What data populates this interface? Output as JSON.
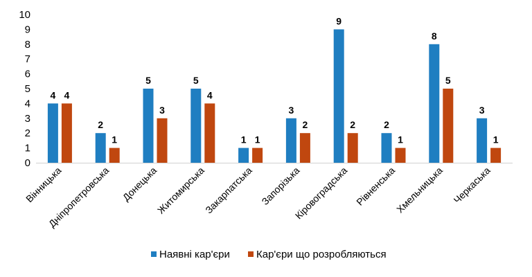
{
  "chart_data": {
    "type": "bar",
    "categories": [
      "Вінницька",
      "Дніпропетровська",
      "Донецька",
      "Житомирська",
      "Закарпатська",
      "Запорізька",
      "Кіровоградська",
      "Рівненська",
      "Хмельницька",
      "Черкаська"
    ],
    "series": [
      {
        "name": "Наявні кар'єри",
        "color": "#1f7ec1",
        "values": [
          4,
          2,
          5,
          5,
          1,
          3,
          9,
          2,
          8,
          3
        ]
      },
      {
        "name": "Кар'єри що розробляються",
        "color": "#c0470f",
        "values": [
          4,
          1,
          3,
          4,
          1,
          2,
          2,
          1,
          5,
          1
        ]
      }
    ],
    "ylim": [
      0,
      10
    ],
    "yticks": [
      "0",
      "1",
      "2",
      "3",
      "4",
      "5",
      "6",
      "7",
      "8",
      "9",
      "10"
    ],
    "grid": false,
    "data_labels": true,
    "legend_position": "bottom"
  }
}
